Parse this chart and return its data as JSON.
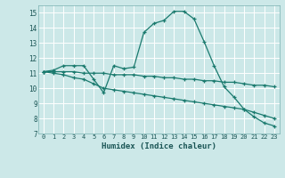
{
  "xlabel": "Humidex (Indice chaleur)",
  "background_color": "#cce8e8",
  "grid_color": "#ffffff",
  "line_color": "#1a7a6e",
  "xlim": [
    -0.5,
    23.5
  ],
  "ylim": [
    7,
    15.5
  ],
  "yticks": [
    7,
    8,
    9,
    10,
    11,
    12,
    13,
    14,
    15
  ],
  "xticks": [
    0,
    1,
    2,
    3,
    4,
    5,
    6,
    7,
    8,
    9,
    10,
    11,
    12,
    13,
    14,
    15,
    16,
    17,
    18,
    19,
    20,
    21,
    22,
    23
  ],
  "line1_x": [
    0,
    1,
    2,
    3,
    4,
    5,
    6,
    7,
    8,
    9,
    10,
    11,
    12,
    13,
    14,
    15,
    16,
    17,
    18,
    19,
    20,
    21,
    22,
    23
  ],
  "line1_y": [
    11.1,
    11.2,
    11.5,
    11.5,
    11.5,
    10.6,
    9.7,
    11.5,
    11.3,
    11.4,
    13.7,
    14.3,
    14.5,
    15.1,
    15.1,
    14.6,
    13.1,
    11.5,
    10.1,
    9.4,
    8.6,
    8.1,
    7.7,
    7.5
  ],
  "line2_x": [
    0,
    1,
    2,
    3,
    4,
    5,
    6,
    7,
    8,
    9,
    10,
    11,
    12,
    13,
    14,
    15,
    16,
    17,
    18,
    19,
    20,
    21,
    22,
    23
  ],
  "line2_y": [
    11.1,
    11.1,
    11.1,
    11.1,
    11.0,
    11.0,
    11.0,
    10.9,
    10.9,
    10.9,
    10.8,
    10.8,
    10.7,
    10.7,
    10.6,
    10.6,
    10.5,
    10.5,
    10.4,
    10.4,
    10.3,
    10.2,
    10.2,
    10.1
  ],
  "line3_x": [
    0,
    1,
    2,
    3,
    4,
    5,
    6,
    7,
    8,
    9,
    10,
    11,
    12,
    13,
    14,
    15,
    16,
    17,
    18,
    19,
    20,
    21,
    22,
    23
  ],
  "line3_y": [
    11.1,
    11.0,
    10.9,
    10.7,
    10.6,
    10.3,
    10.0,
    9.9,
    9.8,
    9.7,
    9.6,
    9.5,
    9.4,
    9.3,
    9.2,
    9.1,
    9.0,
    8.9,
    8.8,
    8.7,
    8.6,
    8.4,
    8.2,
    8.0
  ]
}
